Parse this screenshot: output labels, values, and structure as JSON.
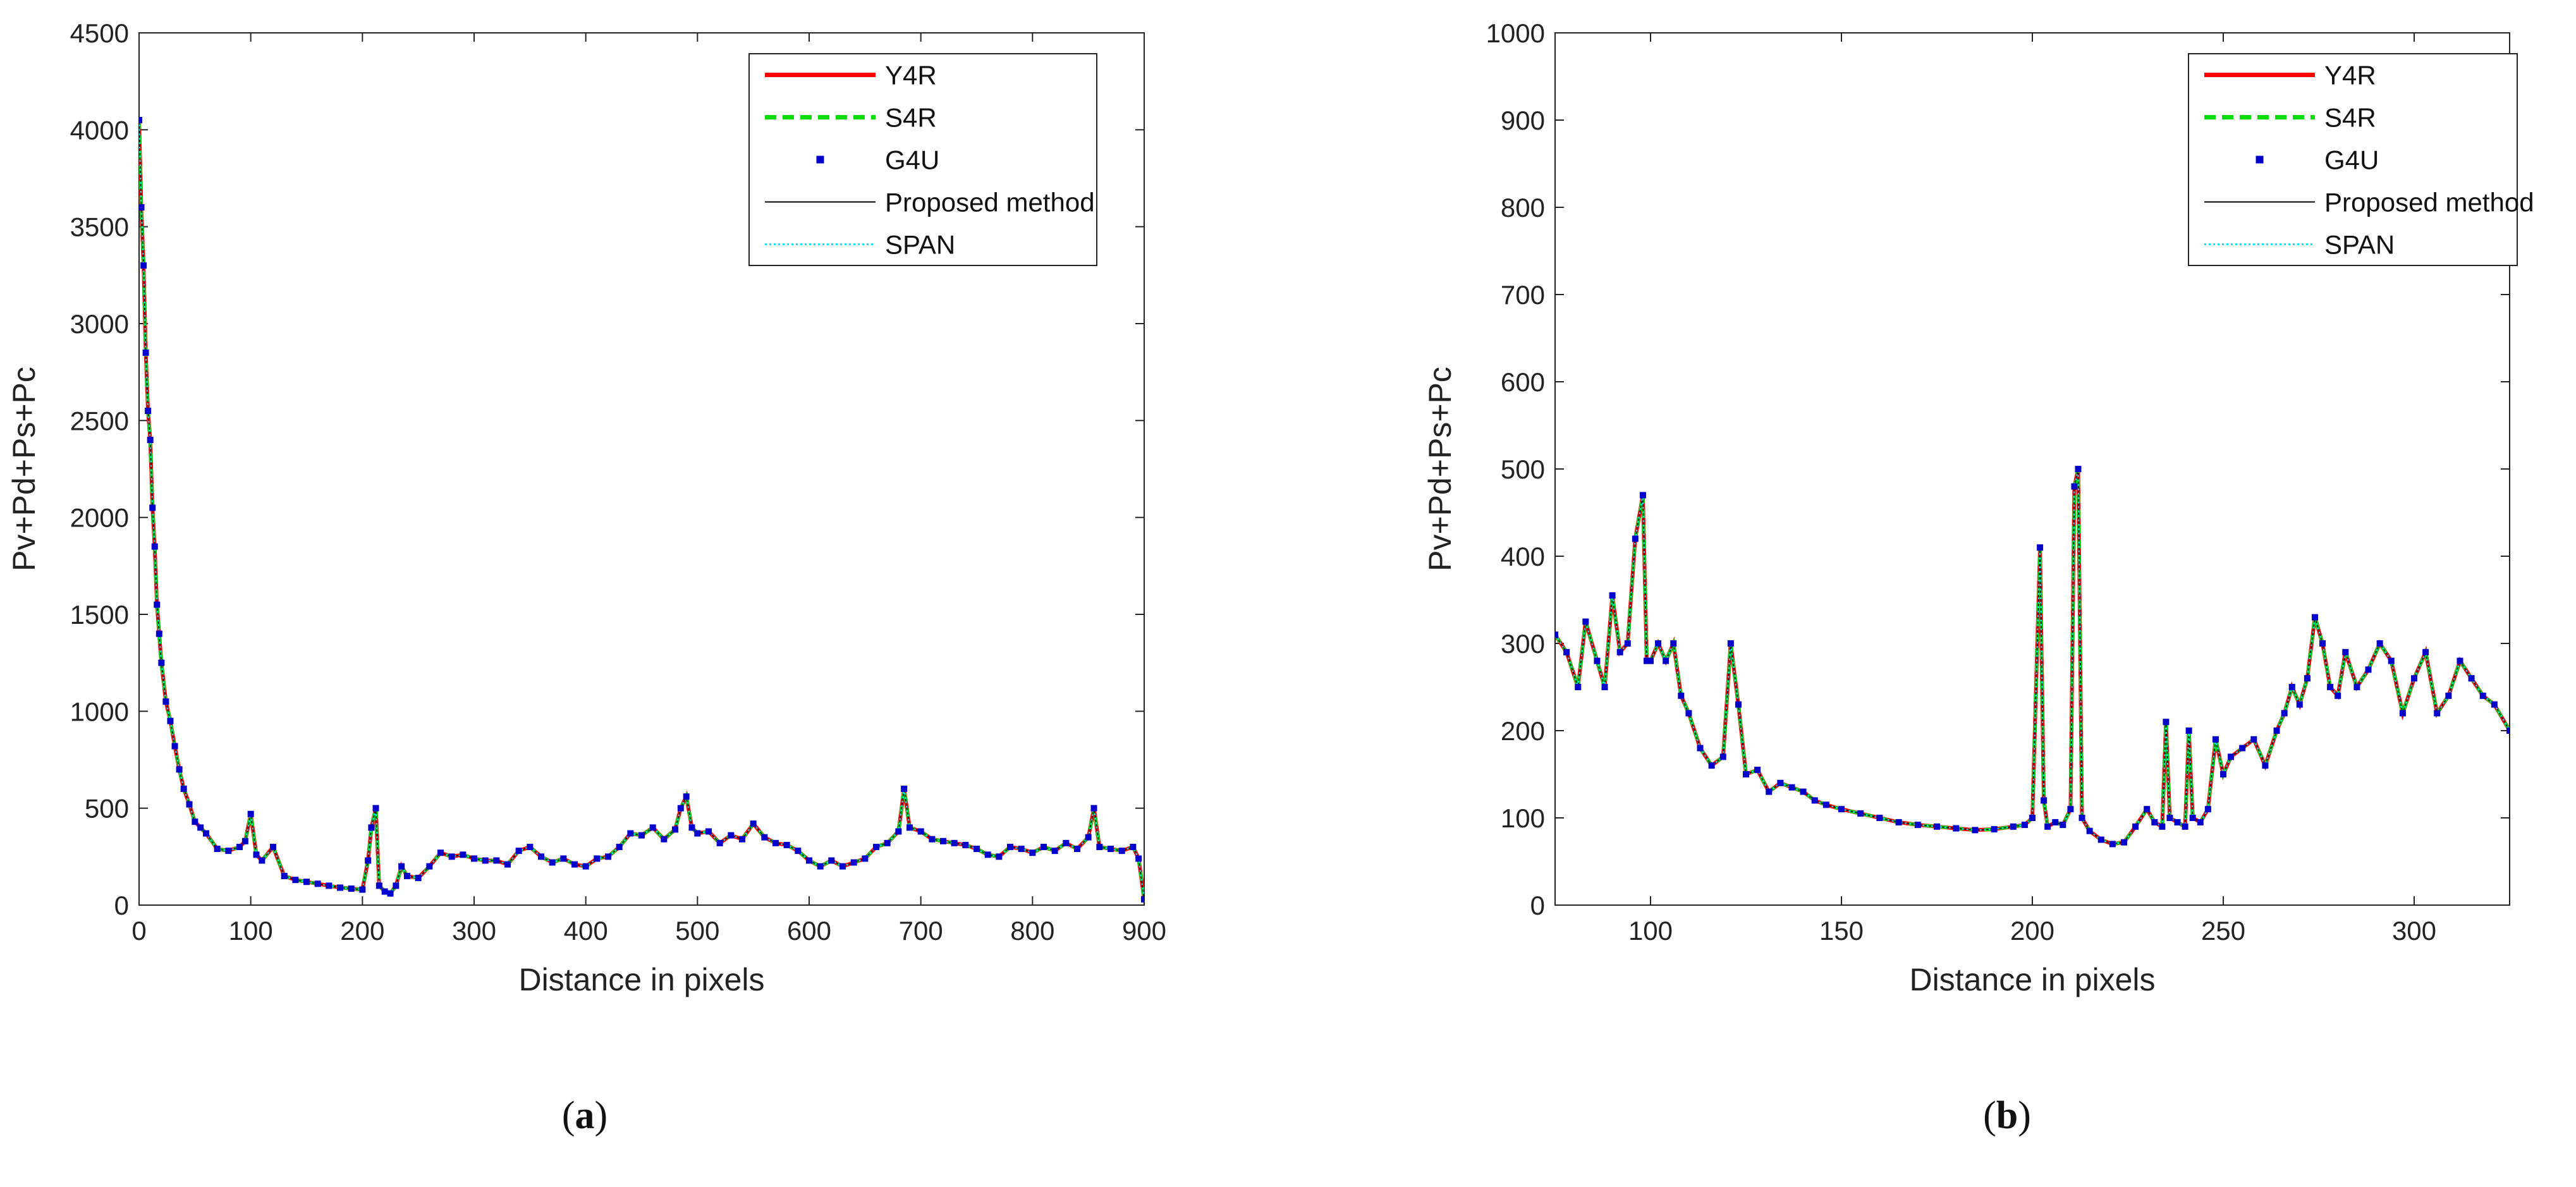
{
  "chart_data": [
    {
      "id": "a",
      "type": "line",
      "caption_letter": "a",
      "xlabel": "Distance in pixels",
      "ylabel": "Pv+Pd+Ps+Pc",
      "xlim": [
        0,
        900
      ],
      "ylim": [
        0,
        4500
      ],
      "xticks": [
        0,
        100,
        200,
        300,
        400,
        500,
        600,
        700,
        800,
        900
      ],
      "yticks": [
        0,
        500,
        1000,
        1500,
        2000,
        2500,
        3000,
        3500,
        4000,
        4500
      ],
      "legend_position": "top-right",
      "series": [
        {
          "name": "Y4R",
          "color": "#ff0000",
          "style": "solid"
        },
        {
          "name": "S4R",
          "color": "#00dd00",
          "style": "dashed"
        },
        {
          "name": "G4U",
          "color": "#0000cc",
          "style": "marker"
        },
        {
          "name": "Proposed method",
          "color": "#000000",
          "style": "thin"
        },
        {
          "name": "SPAN",
          "color": "#00e5ff",
          "style": "dotted"
        }
      ],
      "x": [
        0,
        2,
        4,
        6,
        8,
        10,
        12,
        14,
        16,
        18,
        20,
        24,
        28,
        32,
        36,
        40,
        45,
        50,
        55,
        60,
        70,
        80,
        90,
        95,
        100,
        105,
        110,
        120,
        130,
        140,
        150,
        160,
        170,
        180,
        190,
        200,
        205,
        208,
        212,
        215,
        220,
        225,
        230,
        235,
        240,
        250,
        260,
        270,
        280,
        290,
        300,
        310,
        320,
        330,
        340,
        350,
        360,
        370,
        380,
        390,
        400,
        410,
        420,
        430,
        440,
        450,
        460,
        470,
        480,
        485,
        490,
        495,
        500,
        510,
        520,
        530,
        540,
        550,
        560,
        570,
        580,
        590,
        600,
        610,
        620,
        630,
        640,
        650,
        660,
        670,
        680,
        685,
        690,
        700,
        710,
        720,
        730,
        740,
        750,
        760,
        770,
        780,
        790,
        800,
        810,
        820,
        830,
        840,
        850,
        855,
        860,
        870,
        880,
        890,
        895,
        900
      ],
      "y": [
        4050,
        3600,
        3300,
        2850,
        2550,
        2400,
        2050,
        1850,
        1550,
        1400,
        1250,
        1050,
        950,
        820,
        700,
        600,
        520,
        430,
        400,
        370,
        290,
        280,
        300,
        330,
        470,
        260,
        230,
        300,
        150,
        130,
        120,
        110,
        100,
        90,
        85,
        80,
        230,
        400,
        500,
        100,
        70,
        60,
        100,
        200,
        150,
        140,
        200,
        270,
        250,
        260,
        240,
        230,
        230,
        210,
        280,
        300,
        250,
        220,
        240,
        210,
        200,
        240,
        250,
        300,
        370,
        360,
        400,
        340,
        390,
        500,
        560,
        400,
        370,
        380,
        320,
        360,
        340,
        420,
        350,
        320,
        310,
        280,
        230,
        200,
        230,
        200,
        220,
        240,
        300,
        320,
        380,
        600,
        400,
        380,
        340,
        330,
        320,
        310,
        290,
        260,
        250,
        300,
        290,
        270,
        300,
        280,
        320,
        290,
        350,
        500,
        300,
        290,
        280,
        300,
        240,
        30
      ]
    },
    {
      "id": "b",
      "type": "line",
      "caption_letter": "b",
      "xlabel": "Distance in pixels",
      "ylabel": "Pv+Pd+Ps+Pc",
      "xlim": [
        75,
        325
      ],
      "ylim": [
        0,
        1000
      ],
      "xticks": [
        100,
        150,
        200,
        250,
        300
      ],
      "yticks": [
        0,
        100,
        200,
        300,
        400,
        500,
        600,
        700,
        800,
        900,
        1000
      ],
      "legend_position": "top-right",
      "series": [
        {
          "name": "Y4R",
          "color": "#ff0000",
          "style": "solid"
        },
        {
          "name": "S4R",
          "color": "#00dd00",
          "style": "dashed"
        },
        {
          "name": "G4U",
          "color": "#0000cc",
          "style": "marker"
        },
        {
          "name": "Proposed method",
          "color": "#000000",
          "style": "thin"
        },
        {
          "name": "SPAN",
          "color": "#00e5ff",
          "style": "dotted"
        }
      ],
      "x": [
        75,
        78,
        81,
        83,
        86,
        88,
        90,
        92,
        94,
        96,
        98,
        99,
        100,
        102,
        104,
        106,
        108,
        110,
        113,
        116,
        119,
        121,
        123,
        125,
        128,
        131,
        134,
        137,
        140,
        143,
        146,
        150,
        155,
        160,
        165,
        170,
        175,
        180,
        185,
        190,
        195,
        198,
        200,
        202,
        203,
        204,
        206,
        208,
        210,
        211,
        212,
        213,
        215,
        218,
        221,
        224,
        227,
        230,
        232,
        234,
        235,
        236,
        238,
        240,
        241,
        242,
        244,
        246,
        248,
        250,
        252,
        255,
        258,
        261,
        264,
        266,
        268,
        270,
        272,
        274,
        276,
        278,
        280,
        282,
        285,
        288,
        291,
        294,
        297,
        300,
        303,
        306,
        309,
        312,
        315,
        318,
        321,
        325
      ],
      "y": [
        310,
        290,
        250,
        325,
        280,
        250,
        355,
        290,
        300,
        420,
        470,
        280,
        280,
        300,
        280,
        300,
        240,
        220,
        180,
        160,
        170,
        300,
        230,
        150,
        155,
        130,
        140,
        135,
        130,
        120,
        115,
        110,
        105,
        100,
        95,
        92,
        90,
        88,
        86,
        87,
        90,
        92,
        100,
        410,
        120,
        90,
        95,
        92,
        110,
        480,
        500,
        100,
        85,
        75,
        70,
        72,
        90,
        110,
        95,
        90,
        210,
        100,
        95,
        90,
        200,
        100,
        95,
        110,
        190,
        150,
        170,
        180,
        190,
        160,
        200,
        220,
        250,
        230,
        260,
        330,
        300,
        250,
        240,
        290,
        250,
        270,
        300,
        280,
        220,
        260,
        290,
        220,
        240,
        280,
        260,
        240,
        230,
        200
      ]
    }
  ]
}
